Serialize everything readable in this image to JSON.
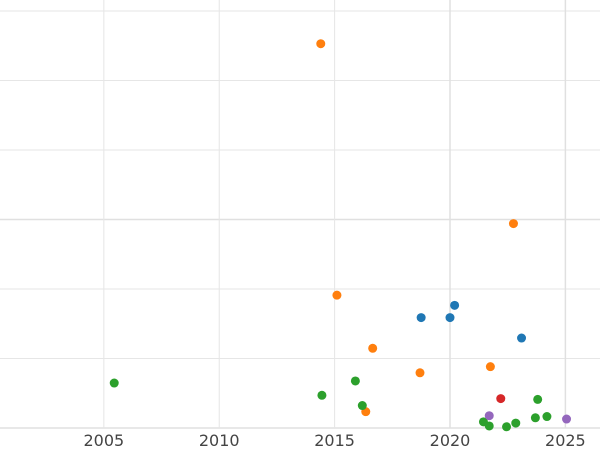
{
  "chart_data": {
    "type": "scatter",
    "title": "",
    "xlabel": "",
    "ylabel": "",
    "xlim": [
      2000.5,
      2026.5
    ],
    "ylim": [
      0,
      10.2
    ],
    "grid": true,
    "x_ticks": [
      2005,
      2010,
      2015,
      2020,
      2025
    ],
    "x_tick_labels": [
      "2005",
      "2010",
      "2015",
      "2020",
      "2025"
    ],
    "series": [
      {
        "color": "#1f77b4",
        "points": [
          {
            "x": 2018.75,
            "y": 2.7
          },
          {
            "x": 2020.0,
            "y": 2.7
          },
          {
            "x": 2020.2,
            "y": 3.0
          },
          {
            "x": 2023.1,
            "y": 2.2
          }
        ]
      },
      {
        "color": "#ff7f0e",
        "points": [
          {
            "x": 2014.4,
            "y": 9.4
          },
          {
            "x": 2022.75,
            "y": 5.0
          },
          {
            "x": 2015.1,
            "y": 3.25
          },
          {
            "x": 2016.65,
            "y": 1.95
          },
          {
            "x": 2021.75,
            "y": 1.5
          },
          {
            "x": 2018.7,
            "y": 1.35
          },
          {
            "x": 2016.35,
            "y": 0.4
          }
        ]
      },
      {
        "color": "#2ca02c",
        "points": [
          {
            "x": 2005.45,
            "y": 1.1
          },
          {
            "x": 2014.45,
            "y": 0.8
          },
          {
            "x": 2015.9,
            "y": 1.15
          },
          {
            "x": 2016.2,
            "y": 0.55
          },
          {
            "x": 2021.45,
            "y": 0.15
          },
          {
            "x": 2021.7,
            "y": 0.05
          },
          {
            "x": 2022.45,
            "y": 0.03
          },
          {
            "x": 2022.85,
            "y": 0.12
          },
          {
            "x": 2023.7,
            "y": 0.25
          },
          {
            "x": 2023.8,
            "y": 0.7
          },
          {
            "x": 2024.2,
            "y": 0.28
          }
        ]
      },
      {
        "color": "#d62728",
        "points": [
          {
            "x": 2022.2,
            "y": 0.72
          }
        ]
      },
      {
        "color": "#9467bd",
        "points": [
          {
            "x": 2021.7,
            "y": 0.3
          },
          {
            "x": 2025.05,
            "y": 0.22
          }
        ]
      }
    ]
  }
}
